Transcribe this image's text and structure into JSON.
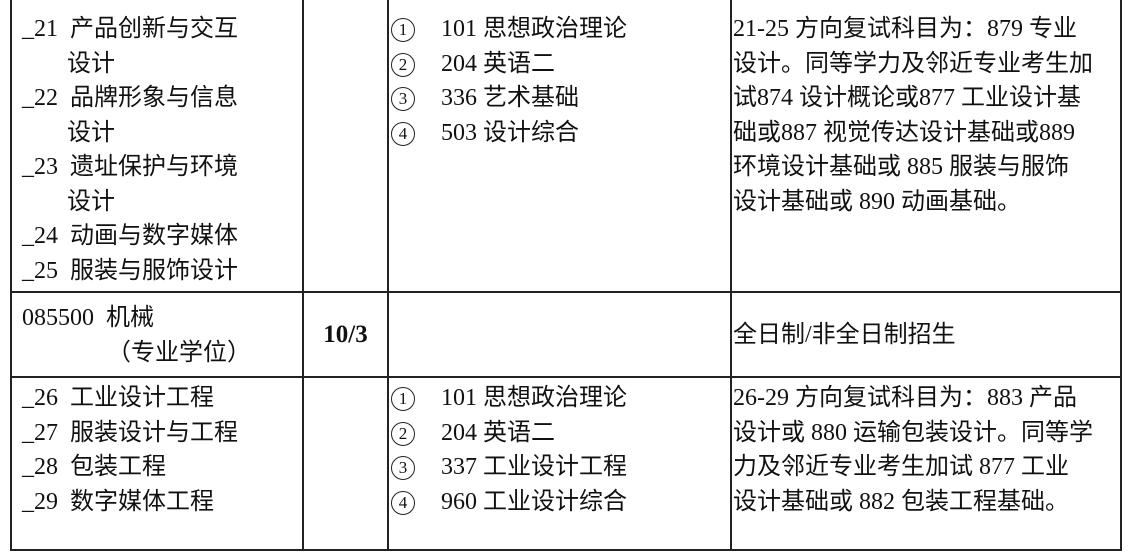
{
  "rows": [
    {
      "directions": [
        {
          "code": "_21",
          "name": "产品创新与交互",
          "cont": "设计"
        },
        {
          "code": "_22",
          "name": "品牌形象与信息",
          "cont": "设计"
        },
        {
          "code": "_23",
          "name": "遗址保护与环境",
          "cont": "设计"
        },
        {
          "code": "_24",
          "name": "动画与数字媒体"
        },
        {
          "code": "_25",
          "name": "服装与服饰设计"
        }
      ],
      "subjects": [
        {
          "mark": "1",
          "text": "101 思想政治理论"
        },
        {
          "mark": "2",
          "text": "204 英语二"
        },
        {
          "mark": "3",
          "text": "336 艺术基础"
        },
        {
          "mark": "4",
          "text": "503 设计综合"
        }
      ],
      "notes_lines": [
        "21-25 方向复试科目为：879 专业",
        "设计。同等学力及邻近专业考生加",
        "试874 设计概论或877 工业设计基",
        "础或887 视觉传达设计基础或889",
        "环境设计基础或 885 服装与服饰",
        "设计基础或 890 动画基础。"
      ]
    },
    {
      "major_code_name": "085500  机械",
      "major_type": "（专业学位）",
      "quota": "10/3",
      "notes": "全日制/非全日制招生"
    },
    {
      "directions": [
        {
          "code": "_26",
          "name": "工业设计工程"
        },
        {
          "code": "_27",
          "name": "服装设计与工程"
        },
        {
          "code": "_28",
          "name": "包装工程"
        },
        {
          "code": "_29",
          "name": "数字媒体工程"
        }
      ],
      "subjects": [
        {
          "mark": "1",
          "text": "101 思想政治理论"
        },
        {
          "mark": "2",
          "text": "204 英语二"
        },
        {
          "mark": "3",
          "text": "337 工业设计工程"
        },
        {
          "mark": "4",
          "text": "960 工业设计综合"
        }
      ],
      "notes_lines": [
        "26-29 方向复试科目为：883 产品",
        "设计或 880 运输包装设计。同等学",
        "力及邻近专业考生加试 877 工业",
        "设计基础或 882 包装工程基础。"
      ]
    }
  ]
}
